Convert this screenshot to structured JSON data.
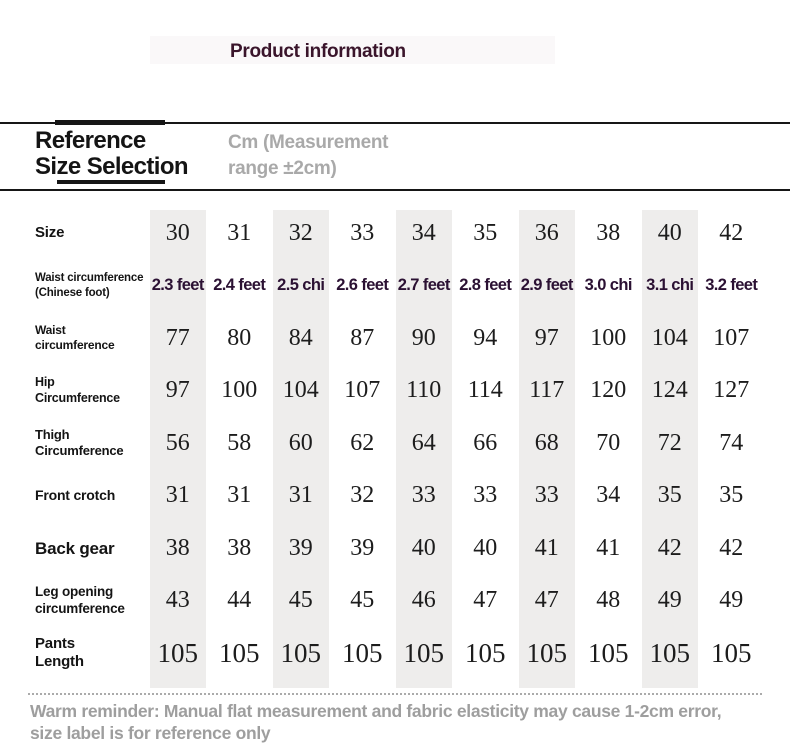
{
  "header": {
    "title": "Product information"
  },
  "section": {
    "title": "Reference\nSize Selection",
    "unit_note": "Cm (Measurement\nrange ±2cm)"
  },
  "table": {
    "rows": [
      {
        "label": "Size",
        "values": [
          "30",
          "31",
          "32",
          "33",
          "34",
          "35",
          "36",
          "38",
          "40",
          "42"
        ]
      },
      {
        "label": "Waist circumference\n(Chinese foot)",
        "values": [
          "2.3 feet",
          "2.4 feet",
          "2.5 chi",
          "2.6 feet",
          "2.7 feet",
          "2.8 feet",
          "2.9 feet",
          "3.0 chi",
          "3.1 chi",
          "3.2 feet"
        ]
      },
      {
        "label": "Waist\ncircumference",
        "values": [
          "77",
          "80",
          "84",
          "87",
          "90",
          "94",
          "97",
          "100",
          "104",
          "107"
        ]
      },
      {
        "label": "Hip\nCircumference",
        "values": [
          "97",
          "100",
          "104",
          "107",
          "110",
          "114",
          "117",
          "120",
          "124",
          "127"
        ]
      },
      {
        "label": "Thigh\nCircumference",
        "values": [
          "56",
          "58",
          "60",
          "62",
          "64",
          "66",
          "68",
          "70",
          "72",
          "74"
        ]
      },
      {
        "label": "Front crotch",
        "values": [
          "31",
          "31",
          "31",
          "32",
          "33",
          "33",
          "33",
          "34",
          "35",
          "35"
        ]
      },
      {
        "label": "Back gear",
        "values": [
          "38",
          "38",
          "39",
          "39",
          "40",
          "40",
          "41",
          "41",
          "42",
          "42"
        ]
      },
      {
        "label": "Leg opening\ncircumference",
        "values": [
          "43",
          "44",
          "45",
          "45",
          "46",
          "47",
          "47",
          "48",
          "49",
          "49"
        ]
      },
      {
        "label": "Pants\nLength",
        "values": [
          "105",
          "105",
          "105",
          "105",
          "105",
          "105",
          "105",
          "105",
          "105",
          "105"
        ]
      }
    ]
  },
  "footer": {
    "reminder": "Warm reminder: Manual flat measurement and fabric elasticity may cause 1-2cm error,\nsize label is for reference only"
  },
  "colors": {
    "title_text": "#3a152b",
    "feet_text": "#2b1133",
    "stripe_bg": "#eeedec",
    "rule": "#161616",
    "note_text": "#a9a9a9",
    "label_text": "#141414",
    "number_text": "#1c1c1c",
    "reminder_text": "#9e9e9e"
  }
}
